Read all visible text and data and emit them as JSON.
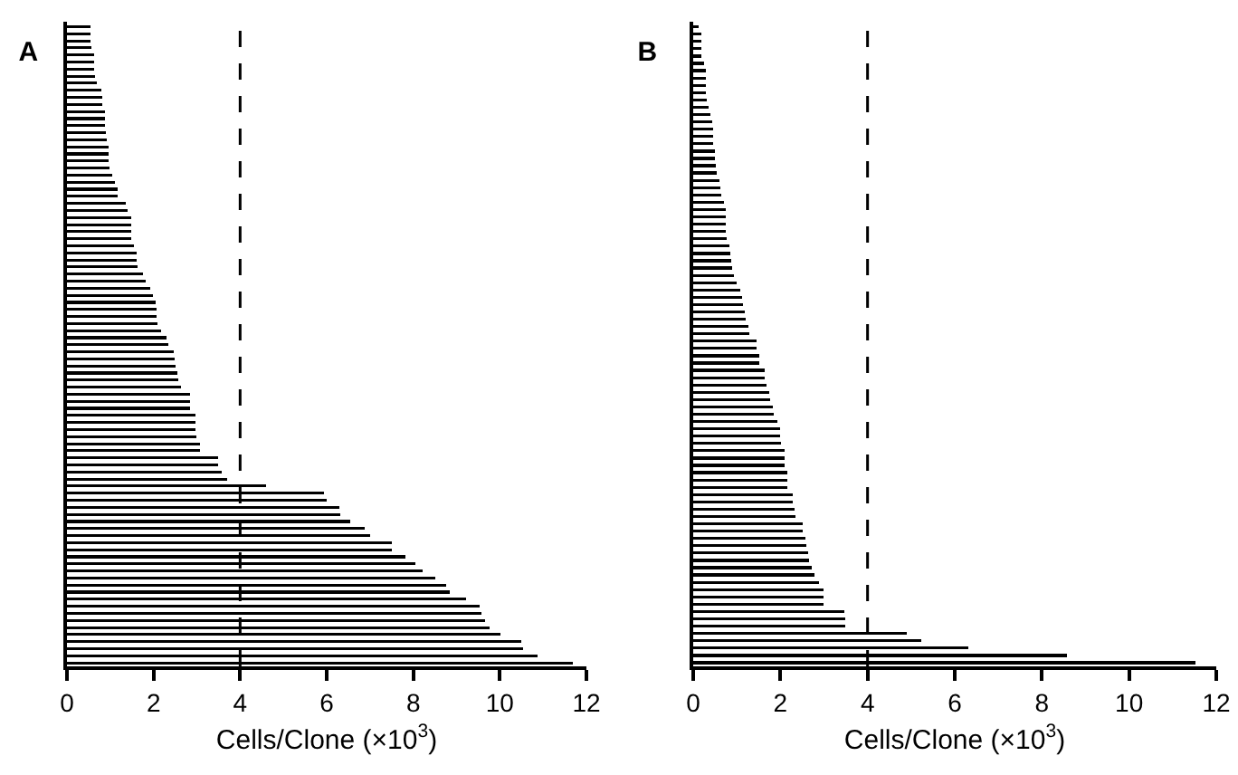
{
  "chart_data": [
    {
      "type": "bar",
      "title": "A",
      "orientation": "horizontal",
      "xlabel": "Cells/Clone (×10$^{3}$)",
      "tick_labels": "x",
      "categories": [
        null,
        null,
        null,
        null,
        null,
        null,
        null,
        null,
        null,
        null,
        null,
        null,
        null,
        null,
        null,
        null,
        null,
        null,
        null,
        null,
        null,
        null,
        null,
        null,
        null,
        null,
        null,
        null,
        null,
        null,
        null,
        null,
        null,
        null,
        null,
        null,
        null,
        null,
        null,
        null,
        null,
        null,
        null,
        null,
        null,
        null,
        null,
        null,
        null,
        null,
        null,
        null,
        null,
        null,
        null,
        null,
        null,
        null,
        null,
        null,
        null,
        null,
        null,
        null,
        null,
        null,
        null,
        null,
        null,
        null,
        null,
        null,
        null,
        null,
        null,
        null,
        null,
        null,
        null,
        null,
        null,
        null,
        null,
        null,
        null,
        null,
        null,
        null,
        null,
        null,
        null
      ],
      "series": [
        {
          "color": "#000000",
          "values": [
            0.54,
            0.54,
            0.54,
            0.57,
            0.63,
            0.63,
            0.63,
            0.65,
            0.68,
            0.79,
            0.82,
            0.82,
            0.88,
            0.88,
            0.88,
            0.9,
            0.93,
            0.96,
            0.96,
            0.96,
            0.99,
            1.04,
            1.1,
            1.18,
            1.18,
            1.35,
            1.4,
            1.49,
            1.49,
            1.49,
            1.49,
            1.54,
            1.6,
            1.6,
            1.63,
            1.76,
            1.82,
            1.93,
            1.99,
            2.04,
            2.07,
            2.07,
            2.1,
            2.18,
            2.29,
            2.35,
            2.46,
            2.49,
            2.51,
            2.54,
            2.57,
            2.63,
            2.85,
            2.85,
            2.85,
            2.96,
            2.96,
            2.96,
            2.99,
            3.07,
            3.07,
            3.49,
            3.49,
            3.57,
            3.71,
            4.6,
            5.93,
            5.99,
            6.29,
            6.32,
            6.54,
            6.88,
            7.01,
            7.51,
            7.51,
            7.82,
            8.04,
            8.21,
            8.51,
            8.76,
            8.85,
            9.21,
            9.54,
            9.57,
            9.65,
            9.76,
            10.01,
            10.49,
            10.54,
            10.88,
            11.68
          ]
        }
      ],
      "xlim": [
        0,
        12
      ],
      "xticks": [
        0,
        2,
        4,
        6,
        8,
        10,
        12
      ],
      "ref_lines": [
        {
          "axis": "x",
          "value": 4,
          "line_style": "dashed",
          "color": "#000000"
        }
      ]
    },
    {
      "type": "bar",
      "title": "B",
      "orientation": "horizontal",
      "xlabel": "Cells/Clone (×10$^{3}$)",
      "tick_labels": "x",
      "categories": [
        null,
        null,
        null,
        null,
        null,
        null,
        null,
        null,
        null,
        null,
        null,
        null,
        null,
        null,
        null,
        null,
        null,
        null,
        null,
        null,
        null,
        null,
        null,
        null,
        null,
        null,
        null,
        null,
        null,
        null,
        null,
        null,
        null,
        null,
        null,
        null,
        null,
        null,
        null,
        null,
        null,
        null,
        null,
        null,
        null,
        null,
        null,
        null,
        null,
        null,
        null,
        null,
        null,
        null,
        null,
        null,
        null,
        null,
        null,
        null,
        null,
        null,
        null,
        null,
        null,
        null,
        null,
        null,
        null,
        null,
        null,
        null,
        null,
        null,
        null,
        null,
        null,
        null,
        null,
        null,
        null,
        null,
        null,
        null,
        null,
        null,
        null,
        null
      ],
      "series": [
        {
          "color": "#000000",
          "values": [
            0.13,
            0.18,
            0.18,
            0.18,
            0.18,
            0.24,
            0.29,
            0.29,
            0.29,
            0.29,
            0.32,
            0.35,
            0.4,
            0.43,
            0.46,
            0.46,
            0.46,
            0.49,
            0.49,
            0.52,
            0.54,
            0.6,
            0.63,
            0.65,
            0.71,
            0.74,
            0.74,
            0.74,
            0.74,
            0.77,
            0.82,
            0.85,
            0.88,
            0.9,
            0.93,
            0.99,
            1.07,
            1.13,
            1.15,
            1.18,
            1.21,
            1.26,
            1.29,
            1.46,
            1.46,
            1.52,
            1.52,
            1.65,
            1.65,
            1.68,
            1.74,
            1.76,
            1.82,
            1.85,
            1.93,
            1.99,
            1.99,
            2.01,
            2.1,
            2.1,
            2.1,
            2.15,
            2.15,
            2.15,
            2.29,
            2.29,
            2.32,
            2.35,
            2.51,
            2.51,
            2.57,
            2.6,
            2.63,
            2.65,
            2.71,
            2.79,
            2.88,
            2.99,
            2.99,
            2.99,
            3.46,
            3.49,
            3.49,
            4.9,
            5.24,
            6.32,
            8.57,
            11.52
          ]
        }
      ],
      "xlim": [
        0,
        12
      ],
      "xticks": [
        0,
        2,
        4,
        6,
        8,
        10,
        12
      ],
      "ref_lines": [
        {
          "axis": "x",
          "value": 4,
          "line_style": "dashed",
          "color": "#000000"
        }
      ]
    }
  ]
}
